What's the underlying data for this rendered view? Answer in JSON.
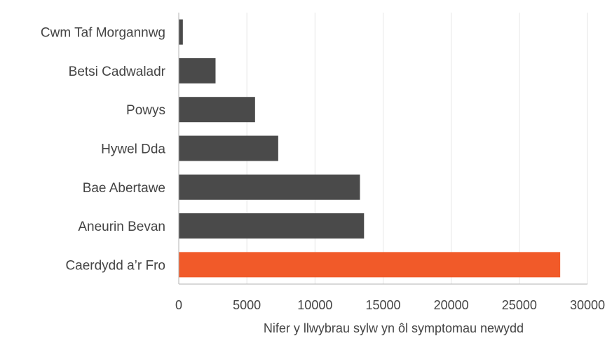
{
  "chart_data": {
    "type": "bar",
    "orientation": "horizontal",
    "categories": [
      "Cwm Taf Morgannwg",
      "Betsi Cadwaladr",
      "Powys",
      "Hywel Dda",
      "Bae Abertawe",
      "Aneurin Bevan",
      "Caerdydd a’r Fro"
    ],
    "values": [
      300,
      2700,
      5600,
      7300,
      13300,
      13600,
      28000
    ],
    "highlight_index": 6,
    "xlabel": "Nifer y llwybrau sylw yn ôl symptomau newydd",
    "ylabel": "",
    "title": "",
    "xlim": [
      0,
      30000
    ],
    "xticks": [
      "0",
      "5000",
      "10000",
      "15000",
      "20000",
      "25000",
      "30000"
    ],
    "grid": "vertical",
    "colors": {
      "bar": "#4a4a4a",
      "highlight": "#f15a29",
      "grid": "#e6e6e6",
      "axis": "#b3b3b3",
      "text": "#444444"
    }
  }
}
